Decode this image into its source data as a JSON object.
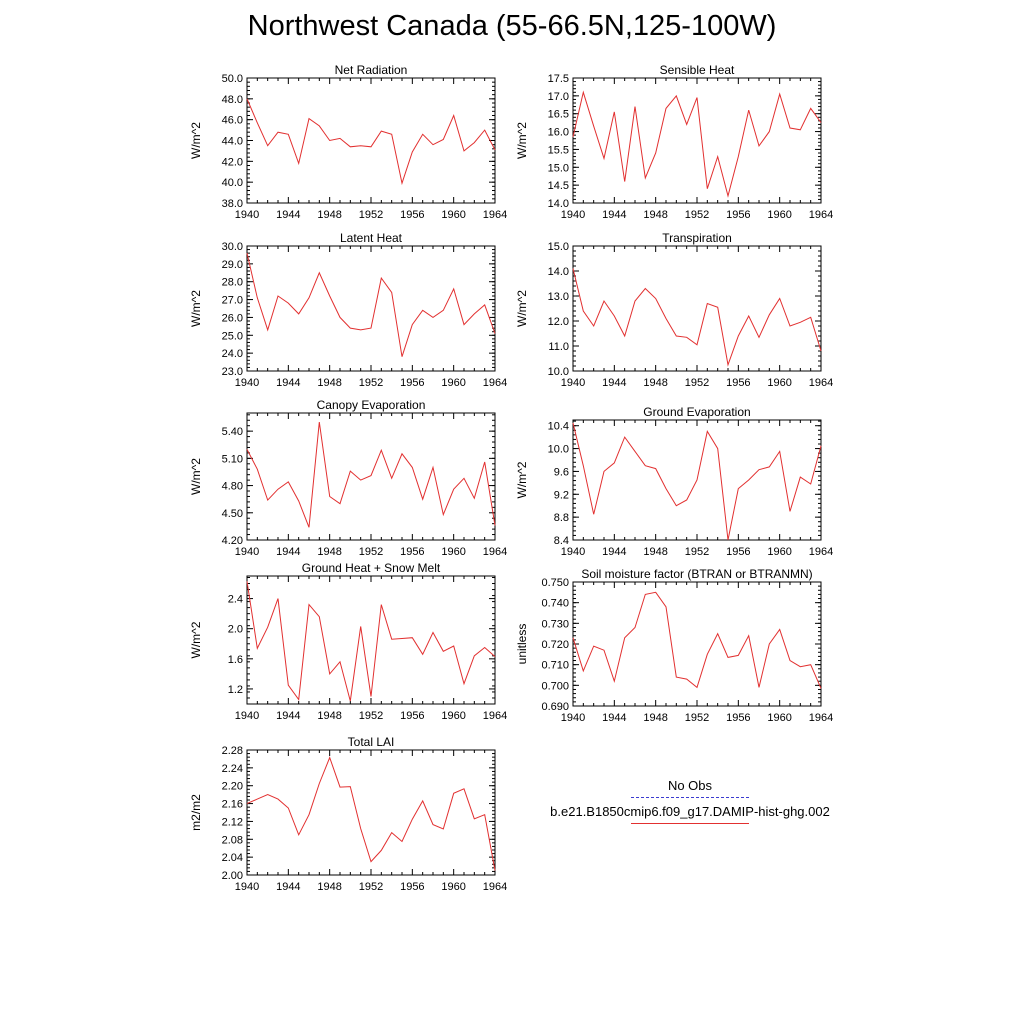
{
  "title": "Northwest Canada (55-66.5N,125-100W)",
  "legend": {
    "entries": [
      {
        "label": "No Obs",
        "color": "#3b3bd0",
        "style": "dashed"
      },
      {
        "label": "b.e21.B1850cmip6.f09_g17.DAMIP-hist-ghg.002",
        "color": "#e23030",
        "style": "solid"
      }
    ]
  },
  "chart_data": [
    {
      "type": "line",
      "title": "Net Radiation",
      "ylabel": "W/m^2",
      "xlim": [
        1940,
        1964
      ],
      "ylim": [
        38.0,
        50.0
      ],
      "yticks": [
        38.0,
        40.0,
        42.0,
        44.0,
        46.0,
        48.0,
        50.0
      ],
      "ytick_labels": [
        "38.0",
        "40.0",
        "42.0",
        "44.0",
        "46.0",
        "48.0",
        "50.0"
      ],
      "xticks": [
        1940,
        1944,
        1948,
        1952,
        1956,
        1960,
        1964
      ],
      "x": [
        1940,
        1941,
        1942,
        1943,
        1944,
        1945,
        1946,
        1947,
        1948,
        1949,
        1950,
        1951,
        1952,
        1953,
        1954,
        1955,
        1956,
        1957,
        1958,
        1959,
        1960,
        1961,
        1962,
        1963,
        1964
      ],
      "series": [
        {
          "name": "b.e21.B1850cmip6.f09_g17.DAMIP-hist-ghg.002",
          "color": "#e23030",
          "values": [
            48.0,
            45.7,
            43.5,
            44.8,
            44.6,
            41.8,
            46.1,
            45.4,
            44.0,
            44.2,
            43.4,
            43.5,
            43.4,
            44.9,
            44.6,
            39.9,
            42.9,
            44.6,
            43.6,
            44.1,
            46.4,
            43.0,
            43.8,
            45.0,
            43.1
          ]
        }
      ]
    },
    {
      "type": "line",
      "title": "Sensible Heat",
      "ylabel": "W/m^2",
      "xlim": [
        1940,
        1964
      ],
      "ylim": [
        14.0,
        17.5
      ],
      "yticks": [
        14.0,
        14.5,
        15.0,
        15.5,
        16.0,
        16.5,
        17.0,
        17.5
      ],
      "ytick_labels": [
        "14.0",
        "14.5",
        "15.0",
        "15.5",
        "16.0",
        "16.5",
        "17.0",
        "17.5"
      ],
      "xticks": [
        1940,
        1944,
        1948,
        1952,
        1956,
        1960,
        1964
      ],
      "x": [
        1940,
        1941,
        1942,
        1943,
        1944,
        1945,
        1946,
        1947,
        1948,
        1949,
        1950,
        1951,
        1952,
        1953,
        1954,
        1955,
        1956,
        1957,
        1958,
        1959,
        1960,
        1961,
        1962,
        1963,
        1964
      ],
      "series": [
        {
          "name": "b.e21.B1850cmip6.f09_g17.DAMIP-hist-ghg.002",
          "color": "#e23030",
          "values": [
            15.85,
            17.1,
            16.15,
            15.25,
            16.55,
            14.6,
            16.7,
            14.7,
            15.4,
            16.65,
            17.0,
            16.2,
            16.95,
            14.4,
            15.3,
            14.2,
            15.3,
            16.6,
            15.6,
            16.0,
            17.05,
            16.1,
            16.05,
            16.65,
            16.25
          ]
        }
      ]
    },
    {
      "type": "line",
      "title": "Latent Heat",
      "ylabel": "W/m^2",
      "xlim": [
        1940,
        1964
      ],
      "ylim": [
        23.0,
        30.0
      ],
      "yticks": [
        23.0,
        24.0,
        25.0,
        26.0,
        27.0,
        28.0,
        29.0,
        30.0
      ],
      "ytick_labels": [
        "23.0",
        "24.0",
        "25.0",
        "26.0",
        "27.0",
        "28.0",
        "29.0",
        "30.0"
      ],
      "xticks": [
        1940,
        1944,
        1948,
        1952,
        1956,
        1960,
        1964
      ],
      "x": [
        1940,
        1941,
        1942,
        1943,
        1944,
        1945,
        1946,
        1947,
        1948,
        1949,
        1950,
        1951,
        1952,
        1953,
        1954,
        1955,
        1956,
        1957,
        1958,
        1959,
        1960,
        1961,
        1962,
        1963,
        1964
      ],
      "series": [
        {
          "name": "b.e21.B1850cmip6.f09_g17.DAMIP-hist-ghg.002",
          "color": "#e23030",
          "values": [
            29.6,
            27.1,
            25.3,
            27.2,
            26.8,
            26.2,
            27.1,
            28.5,
            27.2,
            26.0,
            25.4,
            25.3,
            25.4,
            28.2,
            27.4,
            23.8,
            25.6,
            26.4,
            26.0,
            26.4,
            27.6,
            25.6,
            26.2,
            26.7,
            25.1
          ]
        }
      ]
    },
    {
      "type": "line",
      "title": "Transpiration",
      "ylabel": "W/m^2",
      "xlim": [
        1940,
        1964
      ],
      "ylim": [
        10.0,
        15.0
      ],
      "yticks": [
        10.0,
        11.0,
        12.0,
        13.0,
        14.0,
        15.0
      ],
      "ytick_labels": [
        "10.0",
        "11.0",
        "12.0",
        "13.0",
        "14.0",
        "15.0"
      ],
      "xticks": [
        1940,
        1944,
        1948,
        1952,
        1956,
        1960,
        1964
      ],
      "x": [
        1940,
        1941,
        1942,
        1943,
        1944,
        1945,
        1946,
        1947,
        1948,
        1949,
        1950,
        1951,
        1952,
        1953,
        1954,
        1955,
        1956,
        1957,
        1958,
        1959,
        1960,
        1961,
        1962,
        1963,
        1964
      ],
      "series": [
        {
          "name": "b.e21.B1850cmip6.f09_g17.DAMIP-hist-ghg.002",
          "color": "#e23030",
          "values": [
            14.1,
            12.4,
            11.8,
            12.8,
            12.2,
            11.4,
            12.8,
            13.3,
            12.9,
            12.1,
            11.4,
            11.35,
            11.05,
            12.7,
            12.55,
            10.25,
            11.4,
            12.2,
            11.35,
            12.25,
            12.9,
            11.8,
            11.95,
            12.15,
            10.8
          ]
        }
      ]
    },
    {
      "type": "line",
      "title": "Canopy Evaporation",
      "ylabel": "W/m^2",
      "xlim": [
        1940,
        1964
      ],
      "ylim": [
        4.2,
        5.6
      ],
      "yticks": [
        4.2,
        4.5,
        4.8,
        5.1,
        5.4
      ],
      "ytick_labels": [
        "4.20",
        "4.50",
        "4.80",
        "5.10",
        "5.40"
      ],
      "xticks": [
        1940,
        1944,
        1948,
        1952,
        1956,
        1960,
        1964
      ],
      "x": [
        1940,
        1941,
        1942,
        1943,
        1944,
        1945,
        1946,
        1947,
        1948,
        1949,
        1950,
        1951,
        1952,
        1953,
        1954,
        1955,
        1956,
        1957,
        1958,
        1959,
        1960,
        1961,
        1962,
        1963,
        1964
      ],
      "series": [
        {
          "name": "b.e21.B1850cmip6.f09_g17.DAMIP-hist-ghg.002",
          "color": "#e23030",
          "values": [
            5.2,
            4.98,
            4.64,
            4.76,
            4.84,
            4.63,
            4.34,
            5.5,
            4.68,
            4.6,
            4.96,
            4.86,
            4.91,
            5.19,
            4.88,
            5.15,
            5.0,
            4.65,
            5.0,
            4.48,
            4.76,
            4.88,
            4.66,
            5.06,
            4.36
          ]
        }
      ]
    },
    {
      "type": "line",
      "title": "Ground Evaporation",
      "ylabel": "W/m^2",
      "xlim": [
        1940,
        1964
      ],
      "ylim": [
        8.4,
        10.5
      ],
      "yticks": [
        8.4,
        8.8,
        9.2,
        9.6,
        10.0,
        10.4
      ],
      "ytick_labels": [
        "8.4",
        "8.8",
        "9.2",
        "9.6",
        "10.0",
        "10.4"
      ],
      "xticks": [
        1940,
        1944,
        1948,
        1952,
        1956,
        1960,
        1964
      ],
      "x": [
        1940,
        1941,
        1942,
        1943,
        1944,
        1945,
        1946,
        1947,
        1948,
        1949,
        1950,
        1951,
        1952,
        1953,
        1954,
        1955,
        1956,
        1957,
        1958,
        1959,
        1960,
        1961,
        1962,
        1963,
        1964
      ],
      "series": [
        {
          "name": "b.e21.B1850cmip6.f09_g17.DAMIP-hist-ghg.002",
          "color": "#e23030",
          "values": [
            10.45,
            9.7,
            8.85,
            9.6,
            9.75,
            10.2,
            9.95,
            9.7,
            9.65,
            9.3,
            9.0,
            9.1,
            9.45,
            10.3,
            10.0,
            8.4,
            9.3,
            9.45,
            9.63,
            9.68,
            9.95,
            8.9,
            9.5,
            9.38,
            10.05
          ]
        }
      ]
    },
    {
      "type": "line",
      "title": "Ground Heat + Snow Melt",
      "ylabel": "W/m^2",
      "xlim": [
        1940,
        1964
      ],
      "ylim": [
        1.0,
        2.7
      ],
      "yticks": [
        1.2,
        1.6,
        2.0,
        2.4
      ],
      "ytick_labels": [
        "1.2",
        "1.6",
        "2.0",
        "2.4"
      ],
      "xticks": [
        1940,
        1944,
        1948,
        1952,
        1956,
        1960,
        1964
      ],
      "x": [
        1940,
        1941,
        1942,
        1943,
        1944,
        1945,
        1946,
        1947,
        1948,
        1949,
        1950,
        1951,
        1952,
        1953,
        1954,
        1955,
        1956,
        1957,
        1958,
        1959,
        1960,
        1961,
        1962,
        1963,
        1964
      ],
      "series": [
        {
          "name": "b.e21.B1850cmip6.f09_g17.DAMIP-hist-ghg.002",
          "color": "#e23030",
          "values": [
            2.63,
            1.74,
            2.02,
            2.4,
            1.25,
            1.06,
            2.32,
            2.16,
            1.4,
            1.56,
            1.04,
            2.03,
            1.1,
            2.32,
            1.86,
            1.87,
            1.88,
            1.66,
            1.95,
            1.7,
            1.77,
            1.27,
            1.64,
            1.75,
            1.63
          ]
        }
      ]
    },
    {
      "type": "line",
      "title": "Soil moisture factor (BTRAN or BTRANMN)",
      "ylabel": "unitless",
      "xlim": [
        1940,
        1964
      ],
      "ylim": [
        0.69,
        0.75
      ],
      "yticks": [
        0.69,
        0.7,
        0.71,
        0.72,
        0.73,
        0.74,
        0.75
      ],
      "ytick_labels": [
        "0.690",
        "0.700",
        "0.710",
        "0.720",
        "0.730",
        "0.740",
        "0.750"
      ],
      "xticks": [
        1940,
        1944,
        1948,
        1952,
        1956,
        1960,
        1964
      ],
      "x": [
        1940,
        1941,
        1942,
        1943,
        1944,
        1945,
        1946,
        1947,
        1948,
        1949,
        1950,
        1951,
        1952,
        1953,
        1954,
        1955,
        1956,
        1957,
        1958,
        1959,
        1960,
        1961,
        1962,
        1963,
        1964
      ],
      "series": [
        {
          "name": "b.e21.B1850cmip6.f09_g17.DAMIP-hist-ghg.002",
          "color": "#e23030",
          "values": [
            0.723,
            0.707,
            0.719,
            0.717,
            0.702,
            0.723,
            0.728,
            0.744,
            0.745,
            0.738,
            0.704,
            0.703,
            0.699,
            0.715,
            0.725,
            0.7135,
            0.7145,
            0.724,
            0.699,
            0.72,
            0.727,
            0.712,
            0.709,
            0.71,
            0.6985
          ]
        }
      ]
    },
    {
      "type": "line",
      "title": "Total LAI",
      "ylabel": "m2/m2",
      "xlim": [
        1940,
        1964
      ],
      "ylim": [
        2.0,
        2.28
      ],
      "yticks": [
        2.0,
        2.04,
        2.08,
        2.12,
        2.16,
        2.2,
        2.24,
        2.28
      ],
      "ytick_labels": [
        "2.00",
        "2.04",
        "2.08",
        "2.12",
        "2.16",
        "2.20",
        "2.24",
        "2.28"
      ],
      "xticks": [
        1940,
        1944,
        1948,
        1952,
        1956,
        1960,
        1964
      ],
      "x": [
        1940,
        1941,
        1942,
        1943,
        1944,
        1945,
        1946,
        1947,
        1948,
        1949,
        1950,
        1951,
        1952,
        1953,
        1954,
        1955,
        1956,
        1957,
        1958,
        1959,
        1960,
        1961,
        1962,
        1963,
        1964
      ],
      "series": [
        {
          "name": "b.e21.B1850cmip6.f09_g17.DAMIP-hist-ghg.002",
          "color": "#e23030",
          "values": [
            2.16,
            2.17,
            2.18,
            2.17,
            2.15,
            2.09,
            2.135,
            2.205,
            2.263,
            2.197,
            2.198,
            2.104,
            2.03,
            2.055,
            2.095,
            2.075,
            2.125,
            2.166,
            2.113,
            2.103,
            2.183,
            2.193,
            2.126,
            2.135,
            2.01
          ]
        }
      ]
    }
  ]
}
